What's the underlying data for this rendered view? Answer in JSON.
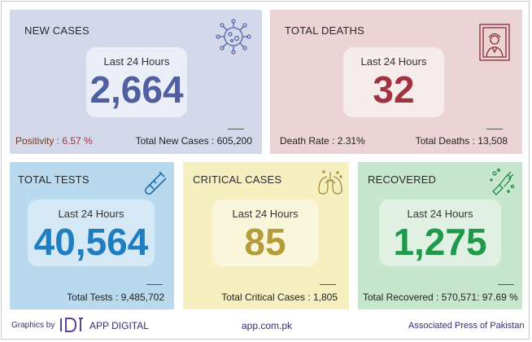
{
  "cards": {
    "new_cases": {
      "title": "NEW CASES",
      "period": "Last 24 Hours",
      "value": "2,664",
      "positivity_label": "Positivity : ",
      "positivity_value": "6.57 %",
      "total": "Total New Cases : 605,200",
      "icon": "virus-icon",
      "color_bg": "#d3d9ea",
      "color_num": "#4f5fa0"
    },
    "total_deaths": {
      "title": "TOTAL DEATHS",
      "period": "Last 24 Hours",
      "value": "32",
      "rate": "Death Rate : 2.31%",
      "total": "Total Deaths : 13,508",
      "icon": "portrait-frame-icon",
      "color_bg": "#ecd4d6",
      "color_num": "#a3323f"
    },
    "total_tests": {
      "title": "TOTAL TESTS",
      "period": "Last 24 Hours",
      "value": "40,564",
      "total": "Total Tests : 9,485,702",
      "icon": "test-tube-icon",
      "color_bg": "#b8d9ee",
      "color_num": "#1f7ec0"
    },
    "critical_cases": {
      "title": "CRITICAL CASES",
      "period": "Last 24 Hours",
      "value": "85",
      "total": "Total Critical Cases : 1,805",
      "icon": "lungs-icon",
      "color_bg": "#f6efc0",
      "color_num": "#b59c3a"
    },
    "recovered": {
      "title": "RECOVERED",
      "period": "Last 24 Hours",
      "value": "1,275",
      "total": "Total Recovered : 570,571: 97.69 %",
      "icon": "hand-sanitize-icon",
      "color_bg": "#c7e6ce",
      "color_num": "#1f9a4a"
    }
  },
  "footer": {
    "graphics_by": "Graphics by",
    "brand": "APP DIGITAL",
    "website": "app.com.pk",
    "agency": "Associated Press of Pakistan"
  }
}
